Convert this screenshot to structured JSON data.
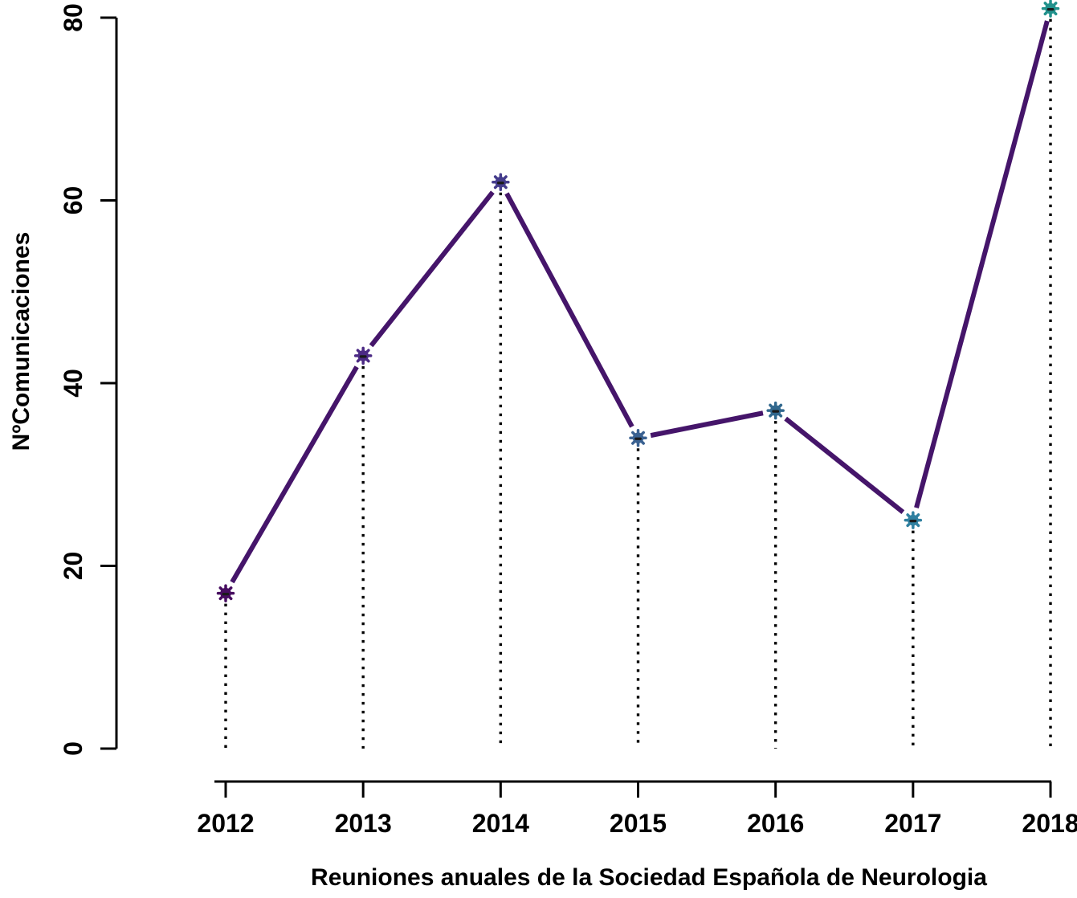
{
  "chart_data": {
    "type": "line",
    "title": "",
    "xlabel": "Reuniones anuales de la Sociedad Española de Neurologia",
    "ylabel": "NºComunicaciones",
    "categories": [
      "2012",
      "2013",
      "2014",
      "2015",
      "2016",
      "2017",
      "2018"
    ],
    "values": [
      17,
      43,
      62,
      34,
      37,
      25,
      81
    ],
    "ylim": [
      0,
      80
    ],
    "yticks": [
      0,
      20,
      40,
      60,
      80
    ],
    "grid": false,
    "legend": "none",
    "line_color": "#45156a",
    "point_colors": [
      "#470d60",
      "#4c2a85",
      "#453c8c",
      "#3a6191",
      "#31688e",
      "#2f80a0",
      "#21918c"
    ],
    "point_center_color": "#1a1a1a",
    "drop_line_style": "dotted",
    "drop_line_color": "#000000",
    "axis_color": "#000000",
    "marker": "asterisk-circle"
  }
}
